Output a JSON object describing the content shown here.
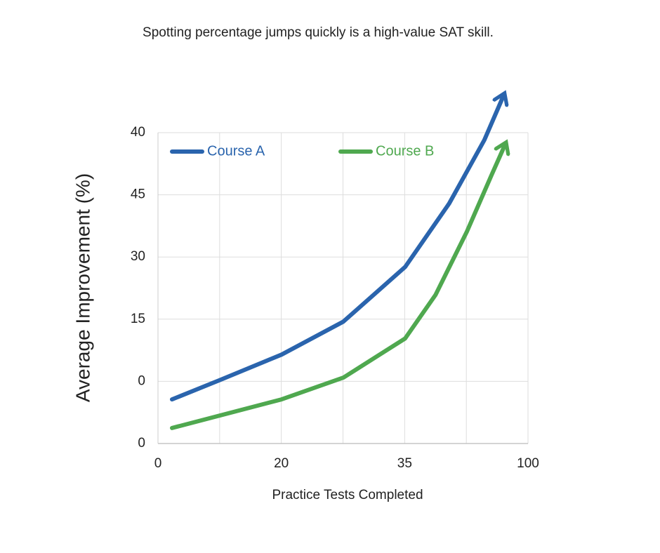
{
  "chart_data": {
    "type": "line",
    "title": "Spotting percentage jumps quickly is a high-value SAT skill.",
    "x_label": "Practice Tests Completed",
    "y_label": "Average Improvement (%)",
    "xlim": [
      0,
      100
    ],
    "xticks": [
      0,
      {
        "value": 33.33,
        "label": "20"
      },
      {
        "value": 66.67,
        "label": "35"
      },
      100
    ],
    "ylim": [
      0,
      50
    ],
    "yticks": [
      0,
      {
        "value": 10,
        "label": "0"
      },
      {
        "value": 20,
        "label": "15"
      },
      30,
      {
        "value": 40,
        "label": "45"
      },
      {
        "value": 50,
        "label": "40"
      }
    ],
    "grid": true,
    "legend": "top-left",
    "series": [
      {
        "name": "Course A",
        "color": "#2a64ad",
        "x": [
          3.8,
          16.7,
          33.4,
          50.1,
          66.8,
          78.7,
          88.2,
          93.5
        ],
        "values": [
          7.1,
          10.2,
          14.3,
          19.6,
          28.4,
          38.6,
          48.8,
          56.1
        ]
      },
      {
        "name": "Course B",
        "color": "#4fa84f",
        "x": [
          3.8,
          16.7,
          33.4,
          50.1,
          66.8,
          75.0,
          83.5,
          90.1,
          93.9
        ],
        "values": [
          2.5,
          4.5,
          7.1,
          10.6,
          16.9,
          23.9,
          34.1,
          43.1,
          48.2
        ]
      }
    ]
  }
}
